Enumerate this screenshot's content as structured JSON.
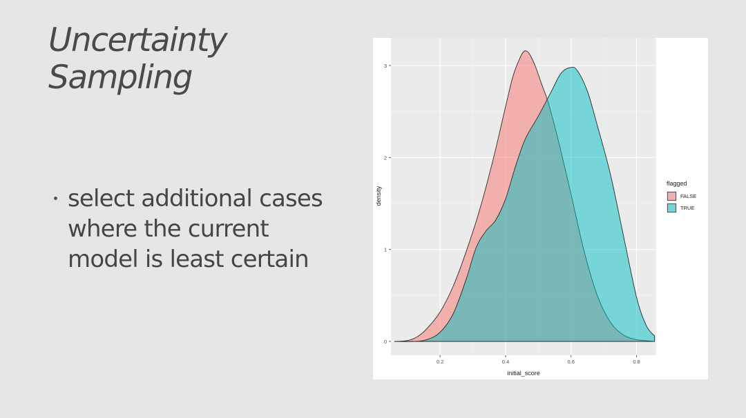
{
  "slide": {
    "title_lines": [
      "Uncertainty",
      "Sampling"
    ],
    "bullets": [
      "select additional cases where the current model is least certain"
    ]
  },
  "chart_data": {
    "type": "area",
    "subtype": "density",
    "title": "",
    "xlabel": "initial_score",
    "ylabel": "density",
    "xlim": [
      0.05,
      0.86
    ],
    "ylim": [
      -0.15,
      3.3
    ],
    "xticks": [
      0.2,
      0.4,
      0.6,
      0.8
    ],
    "yticks": [
      0,
      1,
      2,
      3
    ],
    "grid": true,
    "legend": {
      "title": "flagged",
      "placement": "right"
    },
    "series": [
      {
        "name": "FALSE",
        "color": "#f8766d",
        "x": [
          0.06,
          0.1,
          0.13,
          0.16,
          0.2,
          0.24,
          0.28,
          0.32,
          0.36,
          0.39,
          0.42,
          0.44,
          0.455,
          0.47,
          0.49,
          0.51,
          0.53,
          0.56,
          0.6,
          0.64,
          0.68,
          0.72,
          0.76,
          0.8,
          0.84,
          0.855
        ],
        "y": [
          0.0,
          0.01,
          0.05,
          0.14,
          0.32,
          0.6,
          0.98,
          1.42,
          1.95,
          2.4,
          2.85,
          3.05,
          3.15,
          3.14,
          3.0,
          2.8,
          2.6,
          2.2,
          1.6,
          0.98,
          0.5,
          0.21,
          0.07,
          0.02,
          0.005,
          0.0
        ]
      },
      {
        "name": "TRUE",
        "color": "#00bfc4",
        "x": [
          0.06,
          0.12,
          0.16,
          0.2,
          0.24,
          0.28,
          0.31,
          0.34,
          0.37,
          0.4,
          0.43,
          0.46,
          0.5,
          0.54,
          0.57,
          0.6,
          0.62,
          0.65,
          0.68,
          0.72,
          0.76,
          0.8,
          0.83,
          0.855
        ],
        "y": [
          0.0,
          0.0,
          0.02,
          0.1,
          0.3,
          0.68,
          1.02,
          1.2,
          1.32,
          1.55,
          1.9,
          2.2,
          2.45,
          2.72,
          2.92,
          2.98,
          2.94,
          2.72,
          2.35,
          1.82,
          1.15,
          0.48,
          0.17,
          0.06
        ]
      }
    ]
  }
}
